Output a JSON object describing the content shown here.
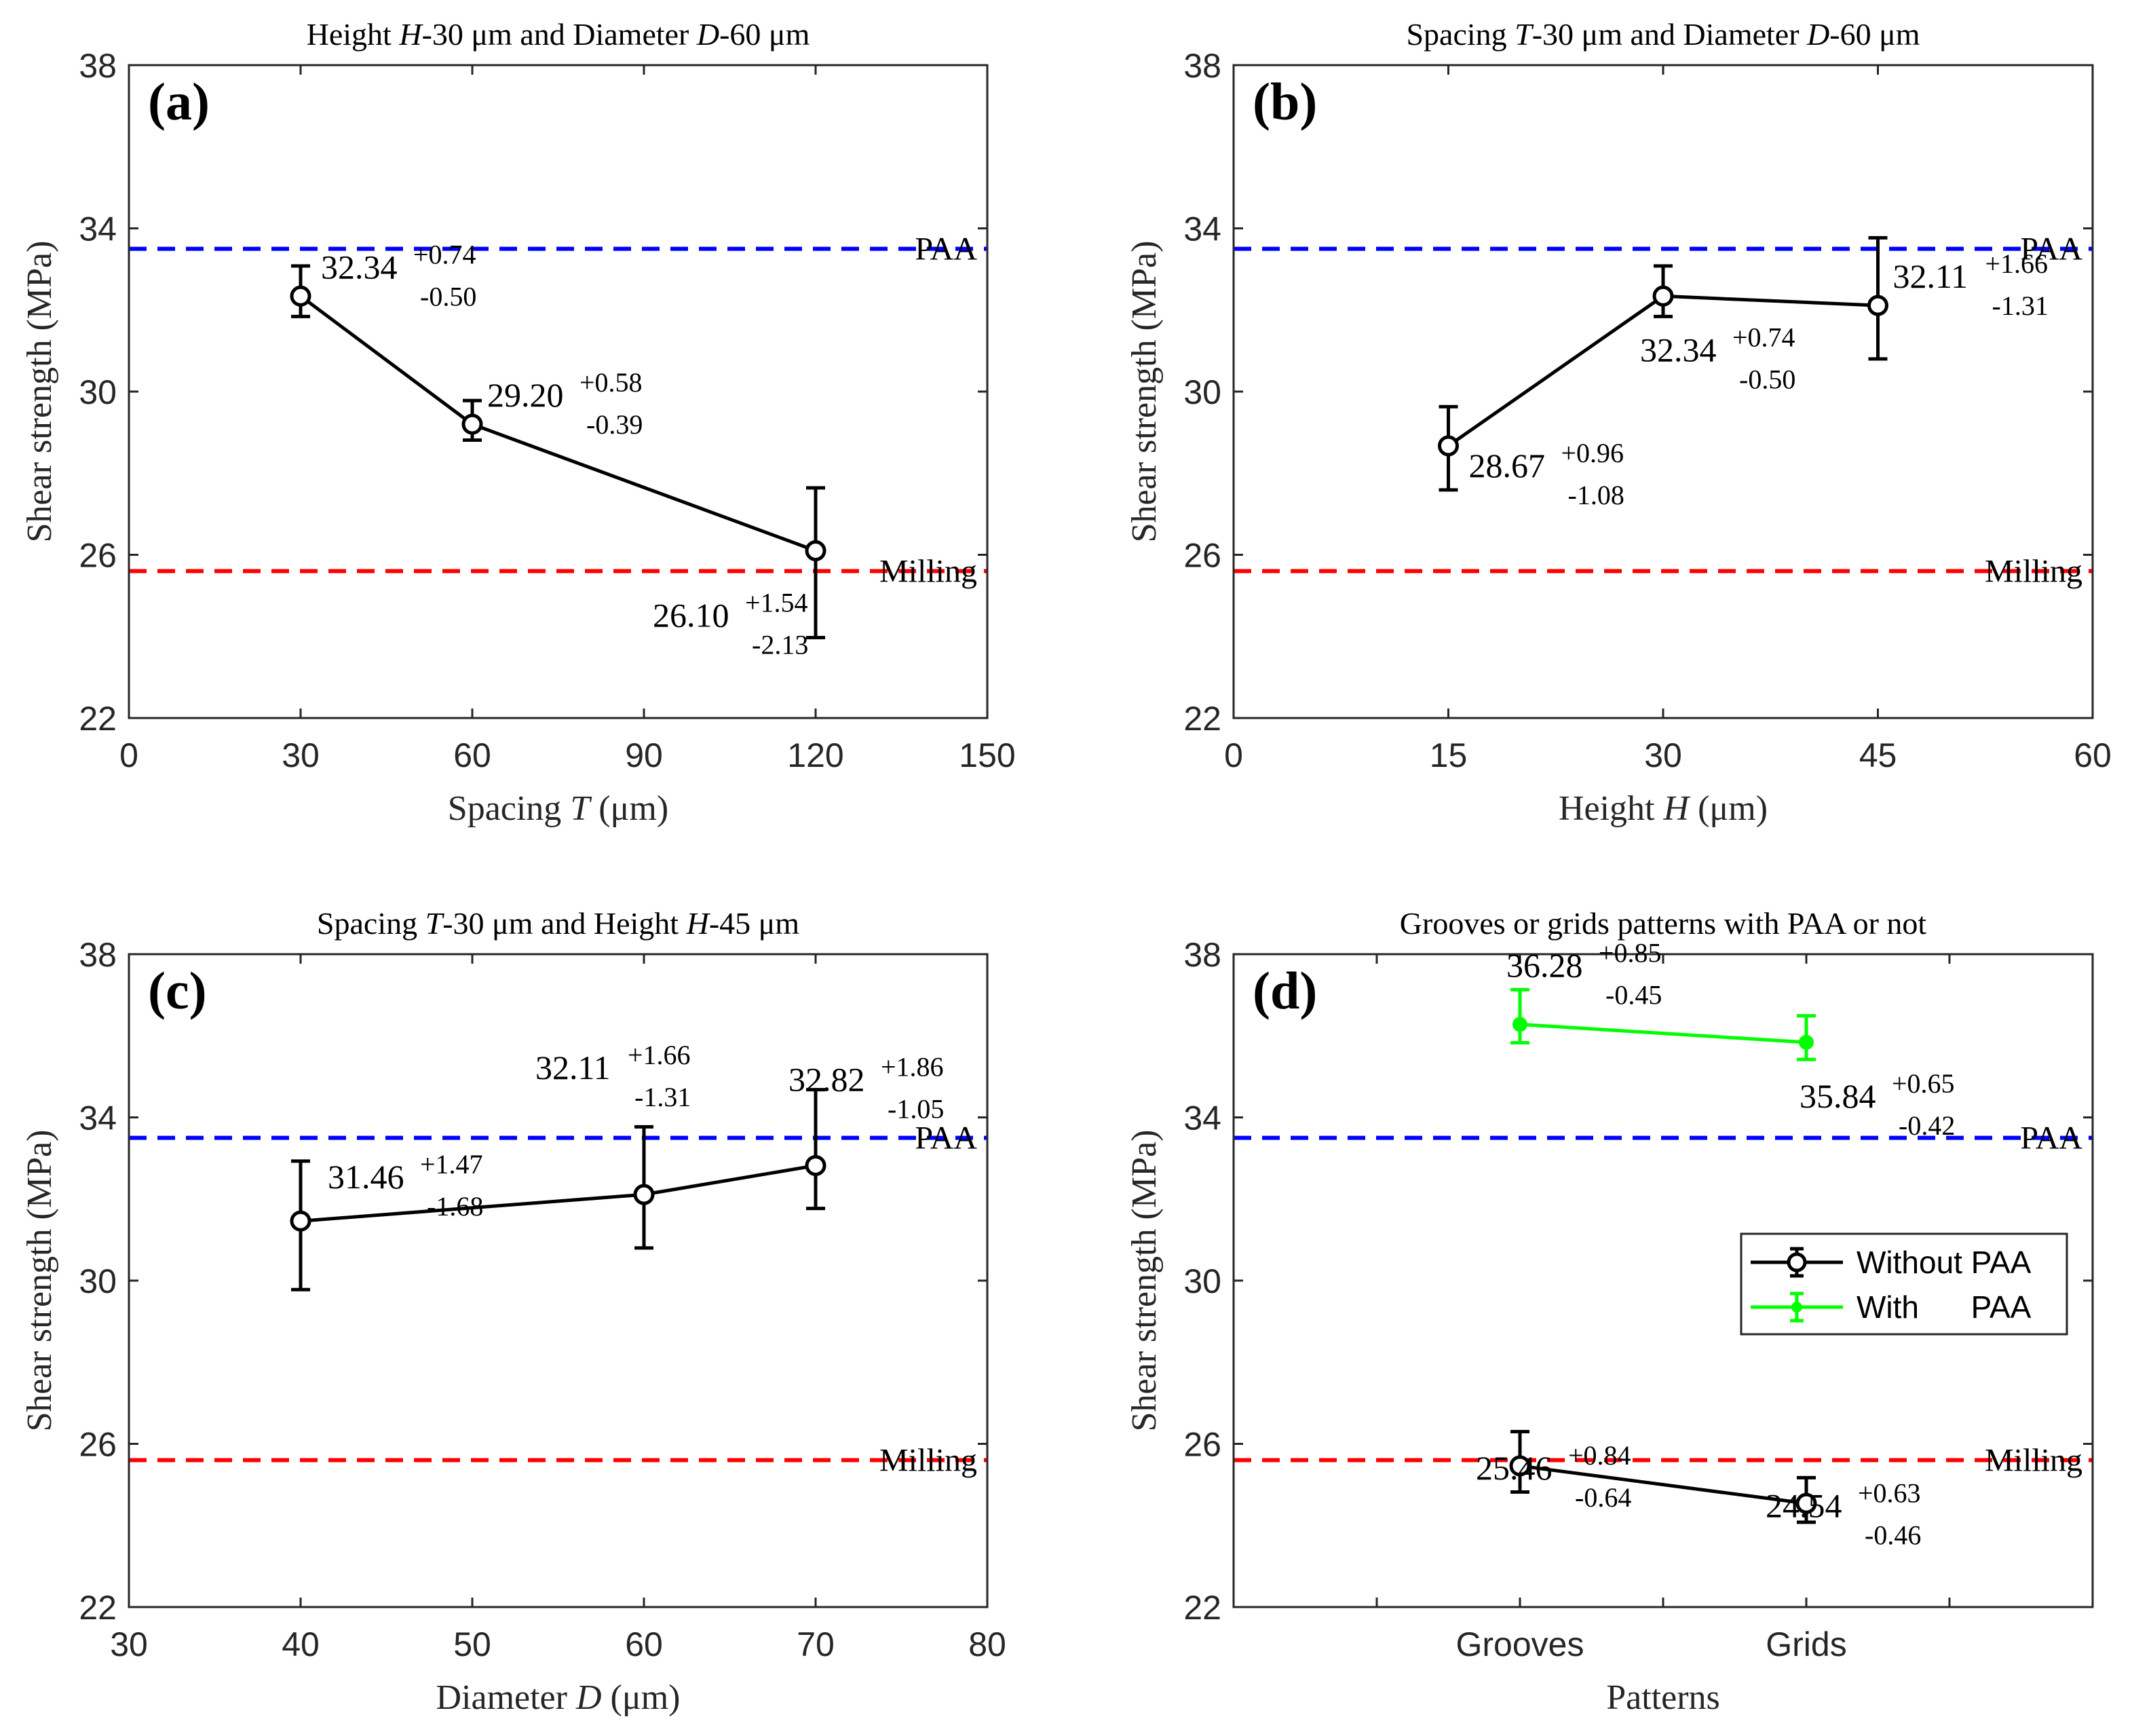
{
  "chart_data": [
    {
      "type": "line",
      "panel_label": "(a)",
      "title": "Height H-30 μm and Diameter D-60 μm",
      "xlabel": "Spacing T (μm)",
      "ylabel": "Shear strength (MPa)",
      "xlim": [
        0,
        150
      ],
      "ylim": [
        22,
        38
      ],
      "xticks": [
        "0",
        "30",
        "60",
        "90",
        "120",
        "150"
      ],
      "yticks": [
        "22",
        "26",
        "30",
        "34",
        "38"
      ],
      "grid": false,
      "reference_lines": [
        {
          "name": "PAA",
          "value": 33.5,
          "color": "#0000ff"
        },
        {
          "name": "Milling",
          "value": 25.6,
          "color": "#ff0000"
        }
      ],
      "series": [
        {
          "name": "",
          "color": "#000000",
          "x": [
            30,
            60,
            120
          ],
          "values": [
            32.34,
            29.2,
            26.1
          ],
          "labels": [
            "32.34",
            "29.20",
            "26.10"
          ],
          "err_plus": [
            "+0.74",
            "+0.58",
            "+1.54"
          ],
          "err_minus": [
            "-0.50",
            "-0.39",
            "-2.13"
          ]
        }
      ]
    },
    {
      "type": "line",
      "panel_label": "(b)",
      "title": "Spacing T-30 μm and Diameter D-60 μm",
      "xlabel": "Height H (μm)",
      "ylabel": "Shear strength (MPa)",
      "xlim": [
        0,
        60
      ],
      "ylim": [
        22,
        38
      ],
      "xticks": [
        "0",
        "15",
        "30",
        "45",
        "60"
      ],
      "yticks": [
        "22",
        "26",
        "30",
        "34",
        "38"
      ],
      "grid": false,
      "reference_lines": [
        {
          "name": "PAA",
          "value": 33.5,
          "color": "#0000ff"
        },
        {
          "name": "Milling",
          "value": 25.6,
          "color": "#ff0000"
        }
      ],
      "series": [
        {
          "name": "",
          "color": "#000000",
          "x": [
            15,
            30,
            45
          ],
          "values": [
            28.67,
            32.34,
            32.11
          ],
          "labels": [
            "28.67",
            "32.34",
            "32.11"
          ],
          "err_plus": [
            "+0.96",
            "+0.74",
            "+1.66"
          ],
          "err_minus": [
            "-1.08",
            "-0.50",
            "-1.31"
          ]
        }
      ]
    },
    {
      "type": "line",
      "panel_label": "(c)",
      "title": "Spacing T-30 μm and Height H-45 μm",
      "xlabel": "Diameter D (μm)",
      "ylabel": "Shear strength (MPa)",
      "xlim": [
        30,
        80
      ],
      "ylim": [
        22,
        38
      ],
      "xticks": [
        "30",
        "40",
        "50",
        "60",
        "70",
        "80"
      ],
      "yticks": [
        "22",
        "26",
        "30",
        "34",
        "38"
      ],
      "grid": false,
      "reference_lines": [
        {
          "name": "PAA",
          "value": 33.5,
          "color": "#0000ff"
        },
        {
          "name": "Milling",
          "value": 25.6,
          "color": "#ff0000"
        }
      ],
      "series": [
        {
          "name": "",
          "color": "#000000",
          "x": [
            40,
            60,
            70
          ],
          "values": [
            31.46,
            32.11,
            32.82
          ],
          "labels": [
            "31.46",
            "32.11",
            "32.82"
          ],
          "err_plus": [
            "+1.47",
            "+1.66",
            "+1.86"
          ],
          "err_minus": [
            "-1.68",
            "-1.31",
            "-1.05"
          ]
        }
      ]
    },
    {
      "type": "line",
      "panel_label": "(d)",
      "title": "Grooves or grids patterns with PAA or not",
      "xlabel": "Patterns",
      "ylabel": "Shear strength (MPa)",
      "xlim": [
        0,
        3
      ],
      "ylim": [
        22,
        38
      ],
      "categories": [
        "Grooves",
        "Grids"
      ],
      "yticks": [
        "22",
        "26",
        "30",
        "34",
        "38"
      ],
      "grid": false,
      "legend": "center-right",
      "reference_lines": [
        {
          "name": "PAA",
          "value": 33.5,
          "color": "#0000ff"
        },
        {
          "name": "Milling",
          "value": 25.6,
          "color": "#ff0000"
        }
      ],
      "series": [
        {
          "name": "Without PAA",
          "color": "#000000",
          "x": [
            1,
            2
          ],
          "values": [
            25.46,
            24.54
          ],
          "labels": [
            "25.46",
            "24.54"
          ],
          "err_plus": [
            "+0.84",
            "+0.63"
          ],
          "err_minus": [
            "-0.64",
            "-0.46"
          ]
        },
        {
          "name": "With      PAA",
          "color": "#00ff00",
          "x": [
            1,
            2
          ],
          "values": [
            36.28,
            35.84
          ],
          "labels": [
            "36.28",
            "35.84"
          ],
          "err_plus": [
            "+0.85",
            "+0.65"
          ],
          "err_minus": [
            "-0.45",
            "-0.42"
          ]
        }
      ]
    }
  ]
}
